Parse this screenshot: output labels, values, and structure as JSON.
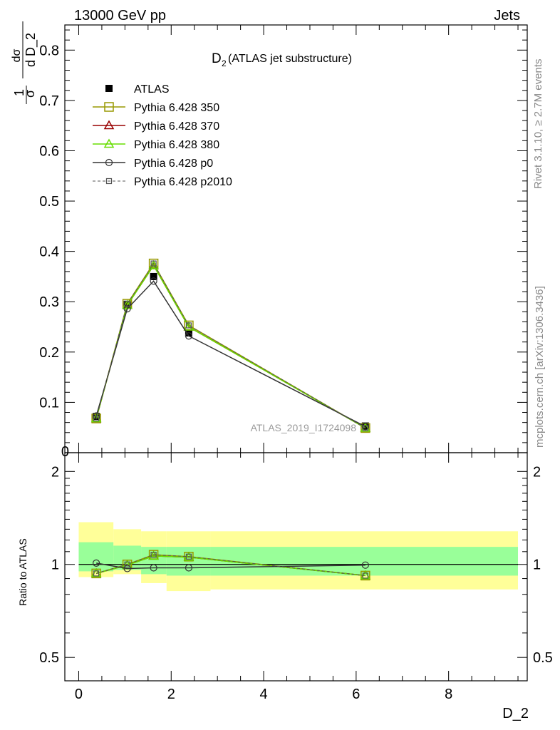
{
  "header": {
    "left": "13000 GeV pp",
    "right": "Jets"
  },
  "side_labels": {
    "rivet": "Rivet 3.1.10, ≥ 2.7M events",
    "mcplots": "mcplots.cern.ch [arXiv:1306.3436]"
  },
  "chart_data": [
    {
      "type": "line",
      "title_main": "D",
      "title_sub": "2",
      "title_rest": " (ATLAS jet substructure)",
      "watermark": "ATLAS_2019_I1724098",
      "xlabel": "D_2",
      "ylabel": {
        "frac1_num": "1",
        "frac1_den": "σ",
        "frac2_num": "dσ",
        "frac2_den": "d D_2"
      },
      "xlim": [
        -0.3,
        9.7
      ],
      "ylim": [
        0,
        0.85
      ],
      "yticks": [
        0.1,
        0.2,
        0.3,
        0.4,
        0.5,
        0.6,
        0.7,
        0.8
      ],
      "ytick_labels": [
        "0.1",
        "0.2",
        "0.3",
        "0.4",
        "0.5",
        "0.6",
        "0.7",
        "0.8"
      ],
      "ybottom_label": "0",
      "x": [
        0.38,
        1.05,
        1.62,
        2.38,
        6.2
      ],
      "series": [
        {
          "name": "ATLAS",
          "color": "#000000",
          "marker": "filled-square",
          "dash": "none",
          "values": [
            0.072,
            0.295,
            0.35,
            0.238,
            0.053
          ]
        },
        {
          "name": "Pythia 6.428 350",
          "color": "#999900",
          "marker": "open-square",
          "dash": "solid",
          "values": [
            0.068,
            0.296,
            0.376,
            0.253,
            0.049
          ]
        },
        {
          "name": "Pythia 6.428 370",
          "color": "#990000",
          "marker": "open-triangle",
          "dash": "solid",
          "values": [
            0.068,
            0.293,
            0.372,
            0.25,
            0.049
          ]
        },
        {
          "name": "Pythia 6.428 380",
          "color": "#66dd00",
          "marker": "open-triangle",
          "dash": "solid",
          "values": [
            0.068,
            0.293,
            0.372,
            0.25,
            0.049
          ]
        },
        {
          "name": "Pythia 6.428 p0",
          "color": "#333333",
          "marker": "open-circle",
          "dash": "solid",
          "values": [
            0.073,
            0.286,
            0.341,
            0.232,
            0.052
          ]
        },
        {
          "name": "Pythia 6.428 p2010",
          "color": "#555555",
          "marker": "open-square-small",
          "dash": "dashed",
          "values": [
            0.068,
            0.296,
            0.376,
            0.253,
            0.049
          ]
        }
      ]
    },
    {
      "type": "line",
      "ylabel": "Ratio to ATLAS",
      "ylim": [
        0.42,
        2.3
      ],
      "yticks": [
        0.5,
        1,
        2
      ],
      "ytick_labels": [
        "0.5",
        "1",
        "2"
      ],
      "xticks": [
        0,
        2,
        4,
        6,
        8
      ],
      "xtick_labels": [
        "0",
        "2",
        "4",
        "6",
        "8"
      ],
      "bins": [
        [
          0.0,
          0.75
        ],
        [
          0.75,
          1.35
        ],
        [
          1.35,
          1.9
        ],
        [
          1.9,
          2.85
        ],
        [
          2.85,
          9.5
        ]
      ],
      "band_yellow": [
        [
          0.91,
          1.37
        ],
        [
          0.93,
          1.3
        ],
        [
          0.87,
          1.28
        ],
        [
          0.82,
          1.28
        ],
        [
          0.83,
          1.28
        ]
      ],
      "band_green": [
        [
          0.95,
          1.18
        ],
        [
          0.96,
          1.15
        ],
        [
          0.93,
          1.14
        ],
        [
          0.92,
          1.14
        ],
        [
          0.92,
          1.14
        ]
      ],
      "x": [
        0.38,
        1.05,
        1.62,
        2.38,
        6.2
      ],
      "series": [
        {
          "name": "Pythia 6.428 350",
          "color": "#999900",
          "marker": "open-square",
          "dash": "solid",
          "values": [
            0.935,
            1.0,
            1.075,
            1.06,
            0.92
          ]
        },
        {
          "name": "Pythia 6.428 370",
          "color": "#990000",
          "marker": "open-triangle",
          "dash": "solid",
          "values": [
            0.935,
            0.995,
            1.065,
            1.055,
            0.92
          ]
        },
        {
          "name": "Pythia 6.428 380",
          "color": "#66dd00",
          "marker": "open-triangle",
          "dash": "solid",
          "values": [
            0.935,
            0.995,
            1.065,
            1.055,
            0.92
          ]
        },
        {
          "name": "Pythia 6.428 p0",
          "color": "#333333",
          "marker": "open-circle",
          "dash": "solid",
          "values": [
            1.01,
            0.97,
            0.975,
            0.975,
            0.995
          ]
        },
        {
          "name": "Pythia 6.428 p2010",
          "color": "#555555",
          "marker": "open-square-small",
          "dash": "dashed",
          "values": [
            0.935,
            1.0,
            1.075,
            1.06,
            0.92
          ]
        }
      ]
    }
  ]
}
